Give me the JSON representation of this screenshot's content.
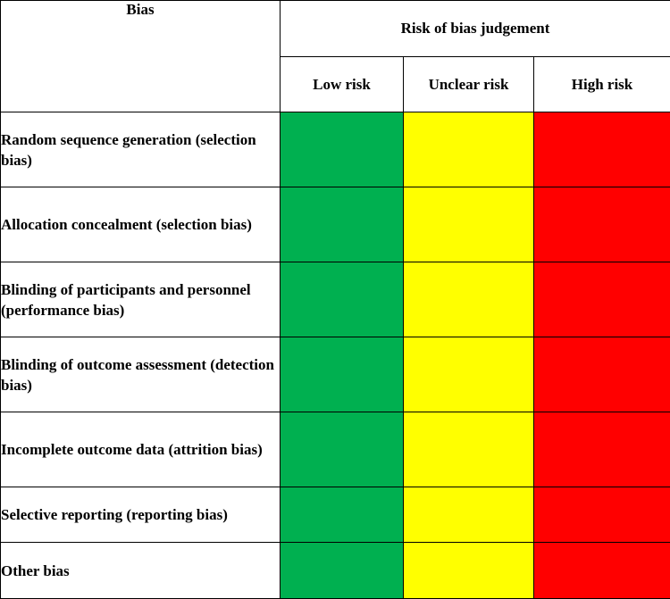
{
  "header": {
    "bias_label": "Bias",
    "judgement_label": "Risk of bias judgement",
    "levels": [
      "Low risk",
      "Unclear risk",
      "High risk"
    ]
  },
  "rows": [
    "Random sequence generation (selection bias)",
    "Allocation concealment (selection bias)",
    "Blinding of participants and personnel (performance bias)",
    "Blinding of outcome assessment (detection bias)",
    "Incomplete outcome data (attrition bias)",
    "Selective reporting (reporting bias)",
    "Other bias"
  ],
  "colors": {
    "low": "#00b050",
    "unclear": "#ffff00",
    "high": "#ff0000"
  }
}
